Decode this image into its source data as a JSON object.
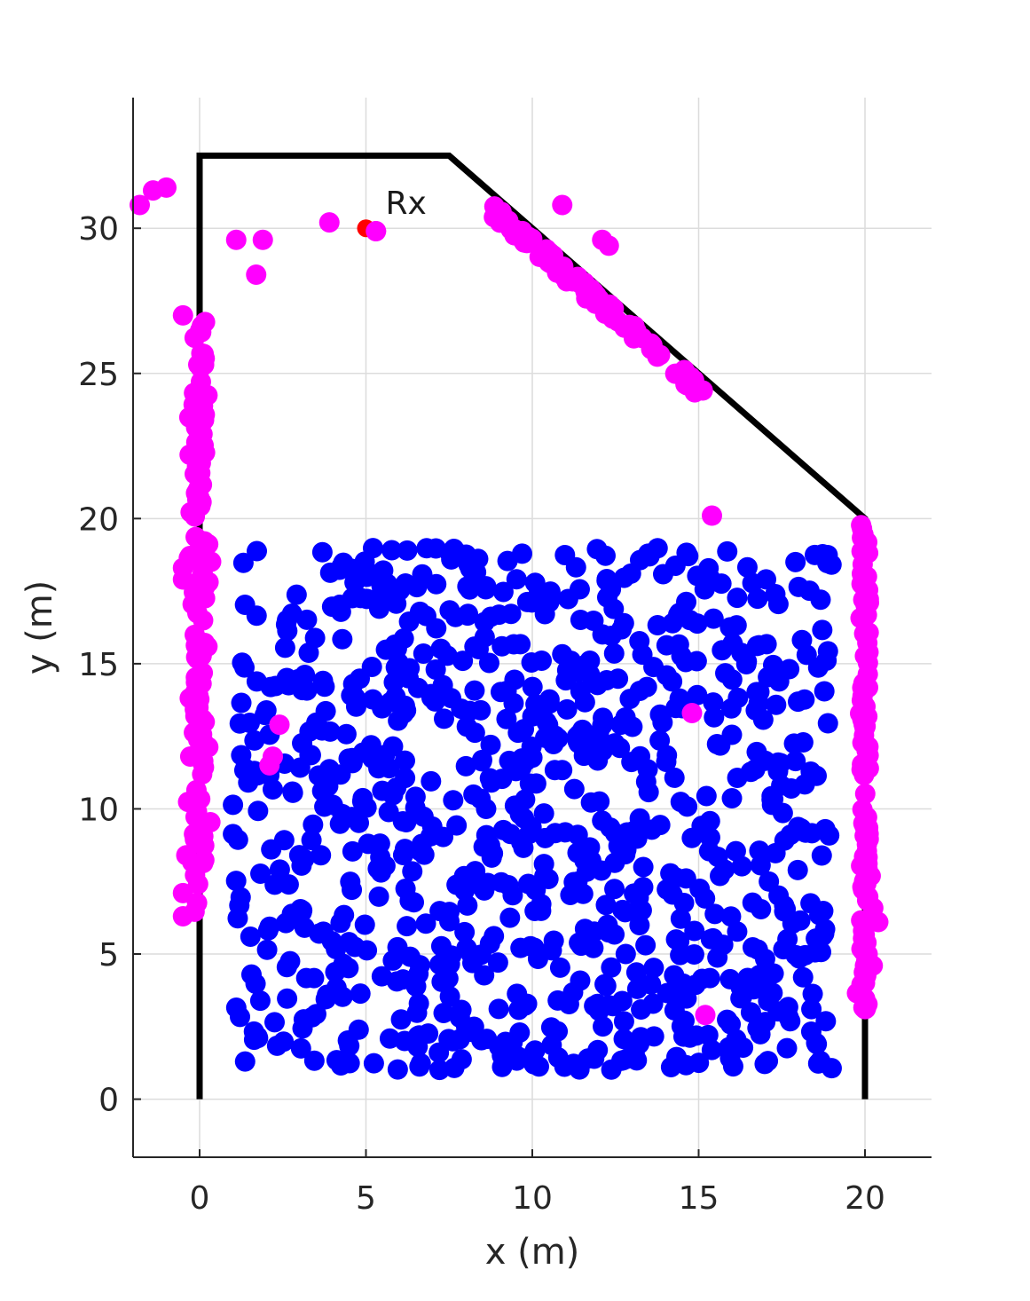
{
  "chart_data": {
    "type": "scatter",
    "xlabel": "x (m)",
    "ylabel": "y (m)",
    "xlim": [
      -2,
      22
    ],
    "ylim": [
      -2,
      34.5
    ],
    "xticks": [
      0,
      5,
      10,
      15,
      20
    ],
    "yticks": [
      0,
      5,
      10,
      15,
      20,
      25,
      30
    ],
    "grid": true,
    "legend": "none",
    "colors": {
      "walls": "#000000",
      "receiver": "#ff0000",
      "scatterers_room": "#0000ff",
      "scatterers_walls": "#ff00ff",
      "grid": "#dcdcdc"
    },
    "walls": {
      "x": [
        0,
        0,
        7.5,
        20,
        20
      ],
      "y": [
        0,
        32.5,
        32.5,
        20,
        0
      ]
    },
    "receiver": {
      "x": 5,
      "y": 30,
      "label": "Rx"
    },
    "blue_points_region": {
      "x_range": [
        1,
        19
      ],
      "y_range": [
        1,
        19
      ],
      "count": 900
    },
    "magenta_points": {
      "left_wall": {
        "x_center": 0,
        "x_spread": 0.35,
        "y_range": [
          6.3,
          27.1
        ],
        "count": 140
      },
      "right_wall": {
        "x_center": 20,
        "x_spread": 0.25,
        "y_range": [
          3.1,
          20
        ],
        "count": 110
      },
      "slanted_wall": {
        "x_range": [
          8.8,
          15.2
        ],
        "y_range": [
          24.8,
          31.2
        ],
        "count": 90
      },
      "isolated": [
        {
          "x": -1.8,
          "y": 30.8
        },
        {
          "x": -1.4,
          "y": 31.3
        },
        {
          "x": -1.0,
          "y": 31.4
        },
        {
          "x": 1.1,
          "y": 29.6
        },
        {
          "x": 1.9,
          "y": 29.6
        },
        {
          "x": 1.7,
          "y": 28.4
        },
        {
          "x": 3.9,
          "y": 30.2
        },
        {
          "x": 5.3,
          "y": 29.9
        },
        {
          "x": 10.9,
          "y": 30.8
        },
        {
          "x": 12.1,
          "y": 29.6
        },
        {
          "x": 12.3,
          "y": 29.4
        },
        {
          "x": 11.9,
          "y": 27.4
        },
        {
          "x": 10.3,
          "y": 29.0
        },
        {
          "x": 9.8,
          "y": 29.6
        },
        {
          "x": 15.4,
          "y": 20.1
        },
        {
          "x": 14.8,
          "y": 13.3
        },
        {
          "x": 15.2,
          "y": 2.9
        },
        {
          "x": 2.4,
          "y": 12.9
        },
        {
          "x": 2.2,
          "y": 11.8
        },
        {
          "x": 2.1,
          "y": 11.5
        },
        {
          "x": -0.5,
          "y": 27.0
        },
        {
          "x": -0.5,
          "y": 18.3
        },
        {
          "x": -0.5,
          "y": 17.9
        },
        {
          "x": -0.3,
          "y": 22.2
        },
        {
          "x": -0.4,
          "y": 8.4
        },
        {
          "x": -0.5,
          "y": 6.3
        },
        {
          "x": -0.5,
          "y": 7.1
        },
        {
          "x": 20.4,
          "y": 6.1
        },
        {
          "x": 20,
          "y": 3.1
        },
        {
          "x": 20,
          "y": 4.0
        },
        {
          "x": 20,
          "y": 4.6
        }
      ]
    }
  }
}
